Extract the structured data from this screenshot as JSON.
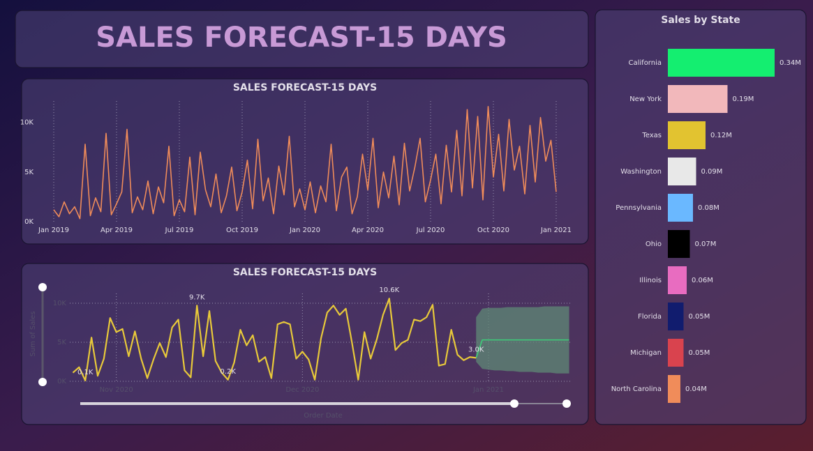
{
  "header": {
    "title": "SALES FORECAST-15 DAYS"
  },
  "chart_data": [
    {
      "type": "line",
      "title": "SALES FORECAST-15 DAYS",
      "color": "#f08c5a",
      "values": [
        1.2,
        0.5,
        2.0,
        0.8,
        1.5,
        0.3,
        7.8,
        0.6,
        2.4,
        1.0,
        8.9,
        0.7,
        1.8,
        3.0,
        9.3,
        0.9,
        2.5,
        1.2,
        4.1,
        0.8,
        3.5,
        1.9,
        7.6,
        0.6,
        2.2,
        1.0,
        6.5,
        0.7,
        7.0,
        3.2,
        1.5,
        4.8,
        0.9,
        2.6,
        5.5,
        1.1,
        3.0,
        6.2,
        1.3,
        8.3,
        2.1,
        4.4,
        0.8,
        5.6,
        2.7,
        8.6,
        1.5,
        3.3,
        1.2,
        4.0,
        0.9,
        3.6,
        2.0,
        7.8,
        1.1,
        4.5,
        5.5,
        0.8,
        2.5,
        6.8,
        3.2,
        8.4,
        1.4,
        5.0,
        2.4,
        6.6,
        1.7,
        7.9,
        3.1,
        5.5,
        8.4,
        2.0,
        4.2,
        6.8,
        1.8,
        7.7,
        3.0,
        9.2,
        2.6,
        11.3,
        3.4,
        10.6,
        2.2,
        11.6,
        4.5,
        8.8,
        3.1,
        10.3,
        5.2,
        7.6,
        2.8,
        9.7,
        4.0,
        10.5,
        6.1,
        8.2,
        3.0
      ],
      "xlim": [
        0,
        96
      ],
      "xticks": [
        {
          "value": 0,
          "label": "Jan 2019"
        },
        {
          "value": 12,
          "label": "Apr 2019"
        },
        {
          "value": 24,
          "label": "Jul 2019"
        },
        {
          "value": 36,
          "label": "Oct 2019"
        },
        {
          "value": 48,
          "label": "Jan 2020"
        },
        {
          "value": 60,
          "label": "Apr 2020"
        },
        {
          "value": 72,
          "label": "Jul 2020"
        },
        {
          "value": 84,
          "label": "Oct 2020"
        },
        {
          "value": 96,
          "label": "Jan 2021"
        }
      ],
      "ylim": [
        0,
        11.8
      ],
      "yticks": [
        {
          "value": 0,
          "label": "0K"
        },
        {
          "value": 5,
          "label": "5K"
        },
        {
          "value": 10,
          "label": "10K"
        }
      ],
      "grid": "x"
    },
    {
      "type": "line",
      "title": "SALES FORECAST-15 DAYS",
      "xlabel": "Order Date",
      "ylabel": "Sum of Sales",
      "color": "#e8c93a",
      "values": [
        1.1,
        1.8,
        0.1,
        5.6,
        0.7,
        2.9,
        8.1,
        6.3,
        6.7,
        3.2,
        6.4,
        2.9,
        0.4,
        2.8,
        4.9,
        3.1,
        6.9,
        7.9,
        1.4,
        0.5,
        9.7,
        3.2,
        9.0,
        2.6,
        1.1,
        0.2,
        2.4,
        6.6,
        4.6,
        5.9,
        2.5,
        3.1,
        0.4,
        7.3,
        7.6,
        7.3,
        2.9,
        3.8,
        2.8,
        0.2,
        5.5,
        8.8,
        9.7,
        8.5,
        9.3,
        4.9,
        0.2,
        6.3,
        2.9,
        5.4,
        8.5,
        10.6,
        4.0,
        4.9,
        5.3,
        7.9,
        7.7,
        8.2,
        9.8,
        2.0,
        2.2,
        6.6,
        3.4,
        2.7,
        3.1,
        3.0
      ],
      "value_labels": [
        null,
        null,
        "0.1K",
        null,
        null,
        null,
        null,
        null,
        null,
        null,
        null,
        null,
        null,
        null,
        null,
        null,
        null,
        null,
        null,
        null,
        "9.7K",
        null,
        null,
        null,
        null,
        "0.2K",
        null,
        null,
        null,
        null,
        null,
        null,
        null,
        null,
        null,
        null,
        null,
        null,
        null,
        null,
        null,
        null,
        null,
        null,
        null,
        null,
        null,
        null,
        null,
        null,
        null,
        "10.6K",
        null,
        null,
        null,
        null,
        null,
        null,
        null,
        null,
        null,
        null,
        null,
        null,
        null,
        "3.0K"
      ],
      "forecast": {
        "color": "#3ecf7a",
        "x": [
          65,
          66,
          67,
          68,
          69,
          70,
          71,
          72,
          73,
          74,
          75,
          76,
          77,
          78,
          79,
          80
        ],
        "values": [
          3.0,
          5.3,
          5.3,
          5.3,
          5.3,
          5.3,
          5.3,
          5.3,
          5.3,
          5.3,
          5.3,
          5.3,
          5.3,
          5.3,
          5.3,
          5.3
        ],
        "upper": [
          8.2,
          9.3,
          9.4,
          9.4,
          9.4,
          9.5,
          9.5,
          9.5,
          9.5,
          9.5,
          9.5,
          9.6,
          9.6,
          9.6,
          9.6,
          9.6
        ],
        "lower": [
          2.5,
          1.6,
          1.5,
          1.4,
          1.4,
          1.3,
          1.3,
          1.2,
          1.2,
          1.2,
          1.1,
          1.1,
          1.1,
          1.0,
          1.0,
          1.0
        ]
      },
      "xlim": [
        -0.5,
        80.5
      ],
      "xticks": [
        {
          "value": 7,
          "label": "Nov 2020"
        },
        {
          "value": 37,
          "label": "Dec 2020"
        },
        {
          "value": 67,
          "label": "Jan 2021"
        }
      ],
      "ylim": [
        0,
        10.8
      ],
      "yticks": [
        {
          "value": 0,
          "label": "0K"
        },
        {
          "value": 5,
          "label": "5K"
        },
        {
          "value": 10,
          "label": "10K"
        }
      ],
      "grid": "both"
    },
    {
      "type": "hbar",
      "title": "Sales by State",
      "categories": [
        "California",
        "New York",
        "Texas",
        "Washington",
        "Pennsylvania",
        "Ohio",
        "Illinois",
        "Florida",
        "Michigan",
        "North Carolina"
      ],
      "values": [
        0.34,
        0.19,
        0.12,
        0.09,
        0.08,
        0.07,
        0.06,
        0.05,
        0.05,
        0.04
      ],
      "value_labels": [
        "0.34M",
        "0.19M",
        "0.12M",
        "0.09M",
        "0.08M",
        "0.07M",
        "0.06M",
        "0.05M",
        "0.05M",
        "0.04M"
      ],
      "colors": [
        "#14ee70",
        "#f2b8bb",
        "#e2c330",
        "#e8e8e8",
        "#6ab8ff",
        "#000000",
        "#e86cc0",
        "#111c6e",
        "#d9434e",
        "#f08c5a"
      ],
      "xlim": [
        0,
        0.34
      ]
    }
  ]
}
